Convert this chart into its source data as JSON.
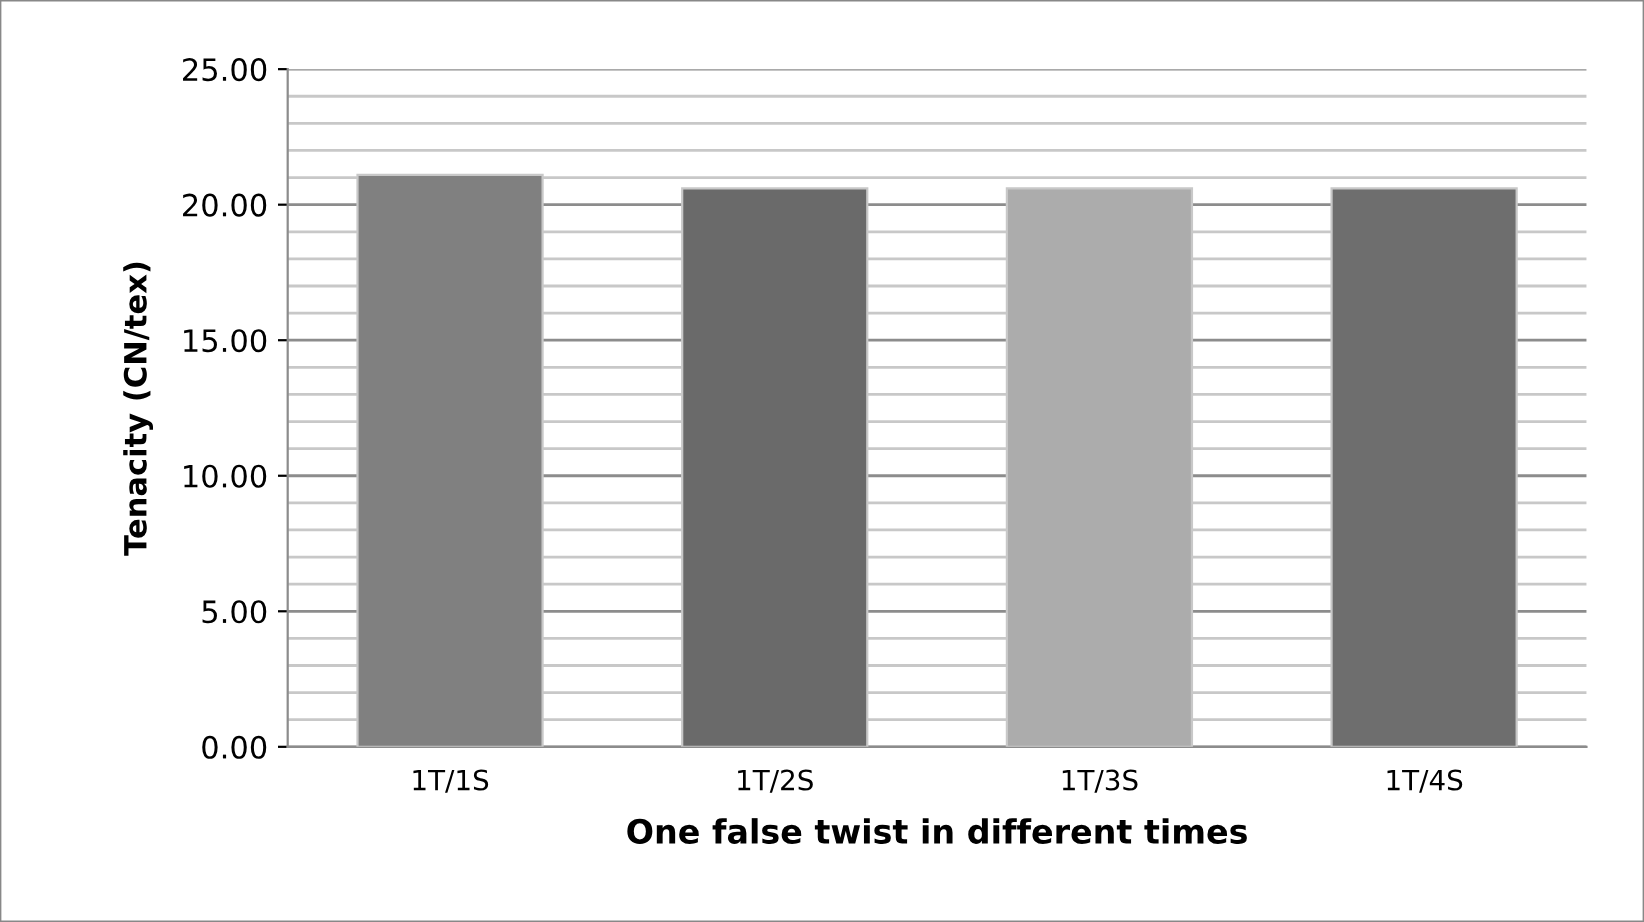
{
  "chart_data": {
    "type": "bar",
    "xlabel": "One false twist in different times",
    "ylabel": "Tenacity (CN/tex)",
    "categories": [
      "1T/1S",
      "1T/2S",
      "1T/3S",
      "1T/4S"
    ],
    "values": [
      21.1,
      20.6,
      20.6,
      20.6
    ],
    "colors": [
      "#808080",
      "#6a6a6a",
      "#acacac",
      "#6e6e6e"
    ],
    "ylim": [
      0,
      25
    ],
    "yticks": [
      {
        "value": 0,
        "label": "0.00"
      },
      {
        "value": 1,
        "label": null
      },
      {
        "value": 2,
        "label": null
      },
      {
        "value": 3,
        "label": null
      },
      {
        "value": 4,
        "label": null
      },
      {
        "value": 5,
        "label": "5.00"
      },
      {
        "value": 6,
        "label": null
      },
      {
        "value": 7,
        "label": null
      },
      {
        "value": 8,
        "label": null
      },
      {
        "value": 9,
        "label": null
      },
      {
        "value": 10,
        "label": "10.00"
      },
      {
        "value": 11,
        "label": null
      },
      {
        "value": 12,
        "label": null
      },
      {
        "value": 13,
        "label": null
      },
      {
        "value": 14,
        "label": null
      },
      {
        "value": 15,
        "label": "15.00"
      },
      {
        "value": 16,
        "label": null
      },
      {
        "value": 17,
        "label": null
      },
      {
        "value": 18,
        "label": null
      },
      {
        "value": 19,
        "label": null
      },
      {
        "value": 20,
        "label": "20.00"
      },
      {
        "value": 21,
        "label": null
      },
      {
        "value": 22,
        "label": null
      },
      {
        "value": 23,
        "label": null
      },
      {
        "value": 24,
        "label": null
      },
      {
        "value": 25,
        "label": "25.00"
      }
    ],
    "grid": "y",
    "legend": false
  }
}
